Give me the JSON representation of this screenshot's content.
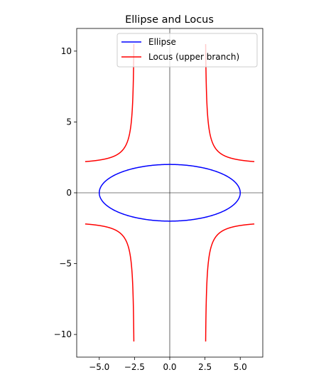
{
  "chart_data": {
    "type": "line",
    "title": "Ellipse and Locus",
    "xlabel": "",
    "ylabel": "",
    "xlim": [
      -6.6,
      6.6
    ],
    "ylim": [
      -11.6,
      11.6
    ],
    "xticks": [
      -5.0,
      -2.5,
      0.0,
      2.5,
      5.0
    ],
    "xtick_labels": [
      "−5.0",
      "−2.5",
      "0.0",
      "2.5",
      "5.0"
    ],
    "yticks": [
      -10,
      -5,
      0,
      5,
      10
    ],
    "ytick_labels": [
      "−10",
      "−5",
      "0",
      "5",
      "10"
    ],
    "axis_lines": {
      "x0": true,
      "y0": true
    },
    "grid": false,
    "legend": {
      "position": "top-right"
    },
    "series": [
      {
        "name": "Ellipse",
        "color": "#0000ff",
        "equation": "x^2/25 + y^2/4 = 1",
        "a": 5,
        "b": 2
      },
      {
        "name": "Locus (upper branch)",
        "color": "#ff0000",
        "x_range": [
          -6,
          6
        ],
        "asymptotes_x": [
          -2.5,
          2.5
        ],
        "y_clip": 10.6
      }
    ]
  }
}
